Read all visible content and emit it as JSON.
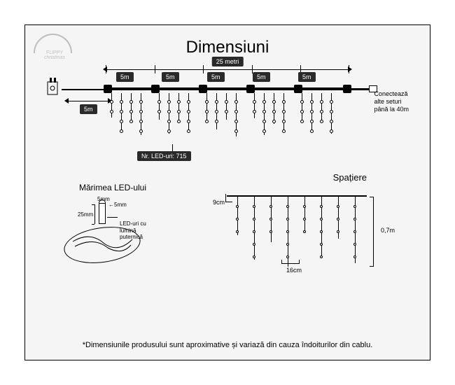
{
  "title": "Dimensiuni",
  "logo": {
    "line1": "FLIPPY",
    "line2": "christmas"
  },
  "main": {
    "total_length": "25 metri",
    "segments": [
      "5m",
      "5m",
      "5m",
      "5m",
      "5m"
    ],
    "lead_length": "5m",
    "connect_text": "Conectează\nalte seturi\npână la 40m",
    "led_count_label": "Nr. LED-uri: 715",
    "colors": {
      "dark": "#2a2a2a",
      "line": "#000000",
      "bg": "#f5f5f5"
    }
  },
  "led": {
    "title": "Mărimea LED-ului",
    "width": "5mm",
    "top": "5mm",
    "height": "25mm",
    "desc": "LED-uri cu lumină\nputernică"
  },
  "spacing": {
    "title": "Spațiere",
    "horiz_gap": "9cm",
    "bulb_gap": "16cm",
    "drop": "0,7m",
    "strand_heights": [
      55,
      90,
      65,
      100,
      50,
      85,
      60,
      95
    ],
    "bulb_spacing": 18
  },
  "footer": "*Dimensiunile produsului sunt aproximative și variază din cauza îndoiturilor din cablu."
}
